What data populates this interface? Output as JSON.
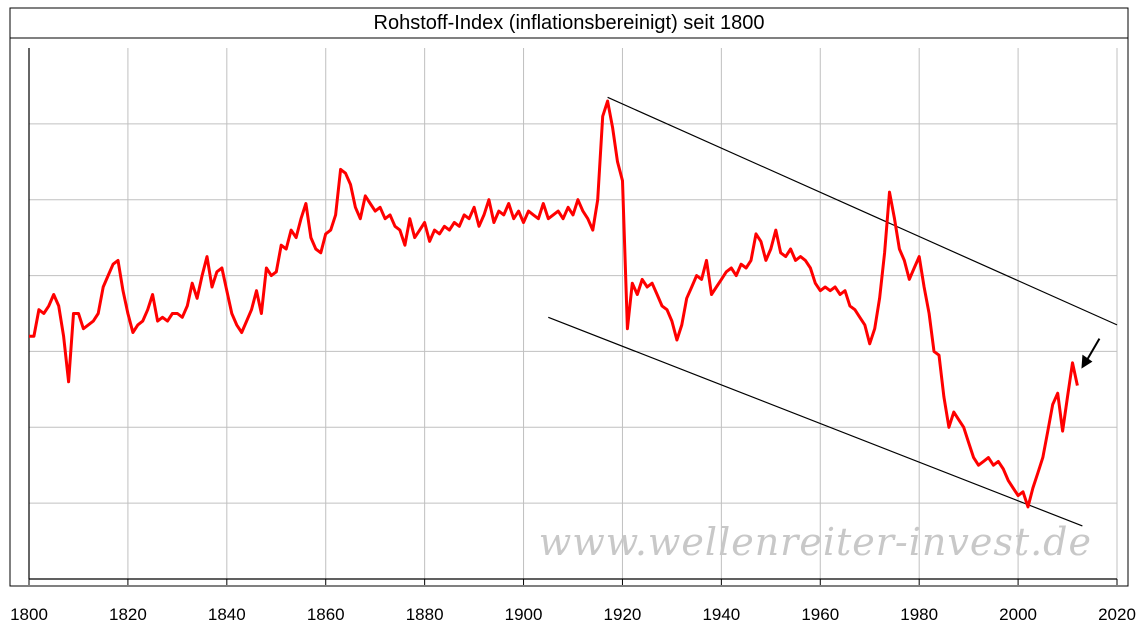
{
  "chart_data": {
    "type": "line",
    "title": "Rohstoff-Index (inflationsbereinigt) seit 1800",
    "xlabel": "",
    "ylabel": "",
    "xlim": [
      1800,
      2020
    ],
    "x_ticks": [
      1800,
      1820,
      1840,
      1860,
      1880,
      1900,
      1920,
      1940,
      1960,
      1980,
      2000,
      2020
    ],
    "y_ticks_printed": false,
    "grid": true,
    "series": [
      {
        "color": "#ff0000",
        "points": [
          [
            1800,
            4.2
          ],
          [
            1801,
            4.2
          ],
          [
            1802,
            4.55
          ],
          [
            1803,
            4.5
          ],
          [
            1804,
            4.6
          ],
          [
            1805,
            4.75
          ],
          [
            1806,
            4.6
          ],
          [
            1807,
            4.2
          ],
          [
            1808,
            3.6
          ],
          [
            1809,
            4.5
          ],
          [
            1810,
            4.5
          ],
          [
            1811,
            4.3
          ],
          [
            1812,
            4.35
          ],
          [
            1813,
            4.4
          ],
          [
            1814,
            4.5
          ],
          [
            1815,
            4.85
          ],
          [
            1816,
            5.0
          ],
          [
            1817,
            5.15
          ],
          [
            1818,
            5.2
          ],
          [
            1819,
            4.8
          ],
          [
            1820,
            4.5
          ],
          [
            1821,
            4.25
          ],
          [
            1822,
            4.35
          ],
          [
            1823,
            4.4
          ],
          [
            1824,
            4.55
          ],
          [
            1825,
            4.75
          ],
          [
            1826,
            4.4
          ],
          [
            1827,
            4.45
          ],
          [
            1828,
            4.4
          ],
          [
            1829,
            4.5
          ],
          [
            1830,
            4.5
          ],
          [
            1831,
            4.45
          ],
          [
            1832,
            4.6
          ],
          [
            1833,
            4.9
          ],
          [
            1834,
            4.7
          ],
          [
            1835,
            5.0
          ],
          [
            1836,
            5.25
          ],
          [
            1837,
            4.85
          ],
          [
            1838,
            5.05
          ],
          [
            1839,
            5.1
          ],
          [
            1840,
            4.8
          ],
          [
            1841,
            4.5
          ],
          [
            1842,
            4.35
          ],
          [
            1843,
            4.25
          ],
          [
            1844,
            4.4
          ],
          [
            1845,
            4.55
          ],
          [
            1846,
            4.8
          ],
          [
            1847,
            4.5
          ],
          [
            1848,
            5.1
          ],
          [
            1849,
            5.0
          ],
          [
            1850,
            5.05
          ],
          [
            1851,
            5.4
          ],
          [
            1852,
            5.35
          ],
          [
            1853,
            5.6
          ],
          [
            1854,
            5.5
          ],
          [
            1855,
            5.75
          ],
          [
            1856,
            5.95
          ],
          [
            1857,
            5.5
          ],
          [
            1858,
            5.35
          ],
          [
            1859,
            5.3
          ],
          [
            1860,
            5.55
          ],
          [
            1861,
            5.6
          ],
          [
            1862,
            5.8
          ],
          [
            1863,
            6.4
          ],
          [
            1864,
            6.35
          ],
          [
            1865,
            6.2
          ],
          [
            1866,
            5.9
          ],
          [
            1867,
            5.75
          ],
          [
            1868,
            6.05
          ],
          [
            1869,
            5.95
          ],
          [
            1870,
            5.85
          ],
          [
            1871,
            5.9
          ],
          [
            1872,
            5.75
          ],
          [
            1873,
            5.8
          ],
          [
            1874,
            5.65
          ],
          [
            1875,
            5.6
          ],
          [
            1876,
            5.4
          ],
          [
            1877,
            5.75
          ],
          [
            1878,
            5.5
          ],
          [
            1879,
            5.6
          ],
          [
            1880,
            5.7
          ],
          [
            1881,
            5.45
          ],
          [
            1882,
            5.6
          ],
          [
            1883,
            5.55
          ],
          [
            1884,
            5.65
          ],
          [
            1885,
            5.6
          ],
          [
            1886,
            5.7
          ],
          [
            1887,
            5.65
          ],
          [
            1888,
            5.8
          ],
          [
            1889,
            5.75
          ],
          [
            1890,
            5.9
          ],
          [
            1891,
            5.65
          ],
          [
            1892,
            5.8
          ],
          [
            1893,
            6.0
          ],
          [
            1894,
            5.7
          ],
          [
            1895,
            5.85
          ],
          [
            1896,
            5.8
          ],
          [
            1897,
            5.95
          ],
          [
            1898,
            5.75
          ],
          [
            1899,
            5.85
          ],
          [
            1900,
            5.7
          ],
          [
            1901,
            5.85
          ],
          [
            1902,
            5.8
          ],
          [
            1903,
            5.75
          ],
          [
            1904,
            5.95
          ],
          [
            1905,
            5.75
          ],
          [
            1906,
            5.8
          ],
          [
            1907,
            5.85
          ],
          [
            1908,
            5.75
          ],
          [
            1909,
            5.9
          ],
          [
            1910,
            5.8
          ],
          [
            1911,
            6.0
          ],
          [
            1912,
            5.85
          ],
          [
            1913,
            5.75
          ],
          [
            1914,
            5.6
          ],
          [
            1915,
            6.0
          ],
          [
            1916,
            7.1
          ],
          [
            1917,
            7.3
          ],
          [
            1918,
            6.95
          ],
          [
            1919,
            6.5
          ],
          [
            1920,
            6.25
          ],
          [
            1921,
            4.3
          ],
          [
            1922,
            4.9
          ],
          [
            1923,
            4.75
          ],
          [
            1924,
            4.95
          ],
          [
            1925,
            4.85
          ],
          [
            1926,
            4.9
          ],
          [
            1927,
            4.75
          ],
          [
            1928,
            4.6
          ],
          [
            1929,
            4.55
          ],
          [
            1930,
            4.4
          ],
          [
            1931,
            4.15
          ],
          [
            1932,
            4.35
          ],
          [
            1933,
            4.7
          ],
          [
            1934,
            4.85
          ],
          [
            1935,
            5.0
          ],
          [
            1936,
            4.95
          ],
          [
            1937,
            5.2
          ],
          [
            1938,
            4.75
          ],
          [
            1939,
            4.85
          ],
          [
            1940,
            4.95
          ],
          [
            1941,
            5.05
          ],
          [
            1942,
            5.1
          ],
          [
            1943,
            5.0
          ],
          [
            1944,
            5.15
          ],
          [
            1945,
            5.1
          ],
          [
            1946,
            5.2
          ],
          [
            1947,
            5.55
          ],
          [
            1948,
            5.45
          ],
          [
            1949,
            5.2
          ],
          [
            1950,
            5.35
          ],
          [
            1951,
            5.6
          ],
          [
            1952,
            5.3
          ],
          [
            1953,
            5.25
          ],
          [
            1954,
            5.35
          ],
          [
            1955,
            5.2
          ],
          [
            1956,
            5.25
          ],
          [
            1957,
            5.2
          ],
          [
            1958,
            5.1
          ],
          [
            1959,
            4.9
          ],
          [
            1960,
            4.8
          ],
          [
            1961,
            4.85
          ],
          [
            1962,
            4.8
          ],
          [
            1963,
            4.85
          ],
          [
            1964,
            4.75
          ],
          [
            1965,
            4.8
          ],
          [
            1966,
            4.6
          ],
          [
            1967,
            4.55
          ],
          [
            1968,
            4.45
          ],
          [
            1969,
            4.35
          ],
          [
            1970,
            4.1
          ],
          [
            1971,
            4.3
          ],
          [
            1972,
            4.7
          ],
          [
            1973,
            5.3
          ],
          [
            1974,
            6.1
          ],
          [
            1975,
            5.75
          ],
          [
            1976,
            5.35
          ],
          [
            1977,
            5.2
          ],
          [
            1978,
            4.95
          ],
          [
            1979,
            5.1
          ],
          [
            1980,
            5.25
          ],
          [
            1981,
            4.85
          ],
          [
            1982,
            4.5
          ],
          [
            1983,
            4.0
          ],
          [
            1984,
            3.95
          ],
          [
            1985,
            3.4
          ],
          [
            1986,
            3.0
          ],
          [
            1987,
            3.2
          ],
          [
            1988,
            3.1
          ],
          [
            1989,
            3.0
          ],
          [
            1990,
            2.8
          ],
          [
            1991,
            2.6
          ],
          [
            1992,
            2.5
          ],
          [
            1993,
            2.55
          ],
          [
            1994,
            2.6
          ],
          [
            1995,
            2.5
          ],
          [
            1996,
            2.55
          ],
          [
            1997,
            2.45
          ],
          [
            1998,
            2.3
          ],
          [
            1999,
            2.2
          ],
          [
            2000,
            2.1
          ],
          [
            2001,
            2.15
          ],
          [
            2002,
            1.95
          ],
          [
            2003,
            2.2
          ],
          [
            2004,
            2.4
          ],
          [
            2005,
            2.6
          ],
          [
            2006,
            2.95
          ],
          [
            2007,
            3.3
          ],
          [
            2008,
            3.45
          ],
          [
            2009,
            2.95
          ],
          [
            2010,
            3.4
          ],
          [
            2011,
            3.85
          ],
          [
            2012,
            3.55
          ]
        ]
      }
    ],
    "trendlines": [
      {
        "name": "upper",
        "from": [
          1917,
          7.35
        ],
        "to": [
          2020,
          4.35
        ]
      },
      {
        "name": "lower",
        "from": [
          1905,
          4.45
        ],
        "to": [
          2013,
          1.7
        ]
      }
    ],
    "annotation": {
      "type": "arrow",
      "points_to": [
        2012,
        3.8
      ]
    },
    "watermark": "www.wellenreiter-invest.de"
  }
}
